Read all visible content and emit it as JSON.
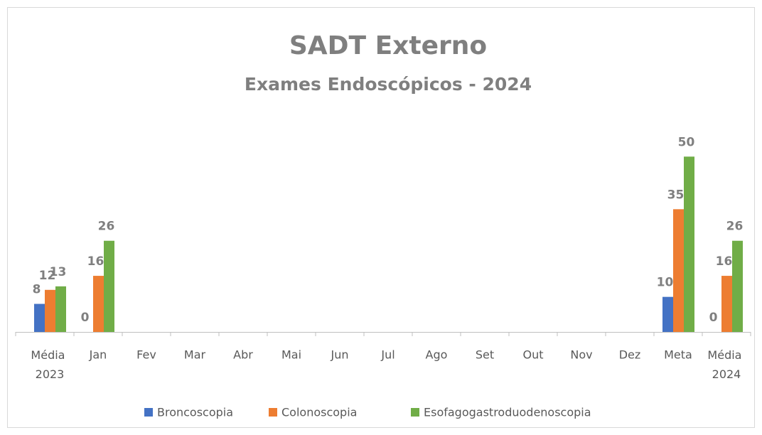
{
  "chart_data": {
    "type": "bar",
    "title": "SADT Externo",
    "subtitle": "Exames Endoscópicos - 2024",
    "categories": [
      "Média 2023",
      "Jan",
      "Fev",
      "Mar",
      "Abr",
      "Mai",
      "Jun",
      "Jul",
      "Ago",
      "Set",
      "Out",
      "Nov",
      "Dez",
      "Meta",
      "Média 2024"
    ],
    "series": [
      {
        "name": "Broncoscopia",
        "color": "#4472c4",
        "values": [
          8,
          0,
          null,
          null,
          null,
          null,
          null,
          null,
          null,
          null,
          null,
          null,
          null,
          10,
          0
        ]
      },
      {
        "name": "Colonoscopia",
        "color": "#ed7d31",
        "values": [
          12,
          16,
          null,
          null,
          null,
          null,
          null,
          null,
          null,
          null,
          null,
          null,
          null,
          35,
          16
        ]
      },
      {
        "name": "Esofagogastroduodenoscopia",
        "color": "#70ad47",
        "values": [
          13,
          26,
          null,
          null,
          null,
          null,
          null,
          null,
          null,
          null,
          null,
          null,
          null,
          50,
          26
        ]
      }
    ],
    "ylim": [
      0,
      60
    ],
    "legend": "bottom"
  }
}
